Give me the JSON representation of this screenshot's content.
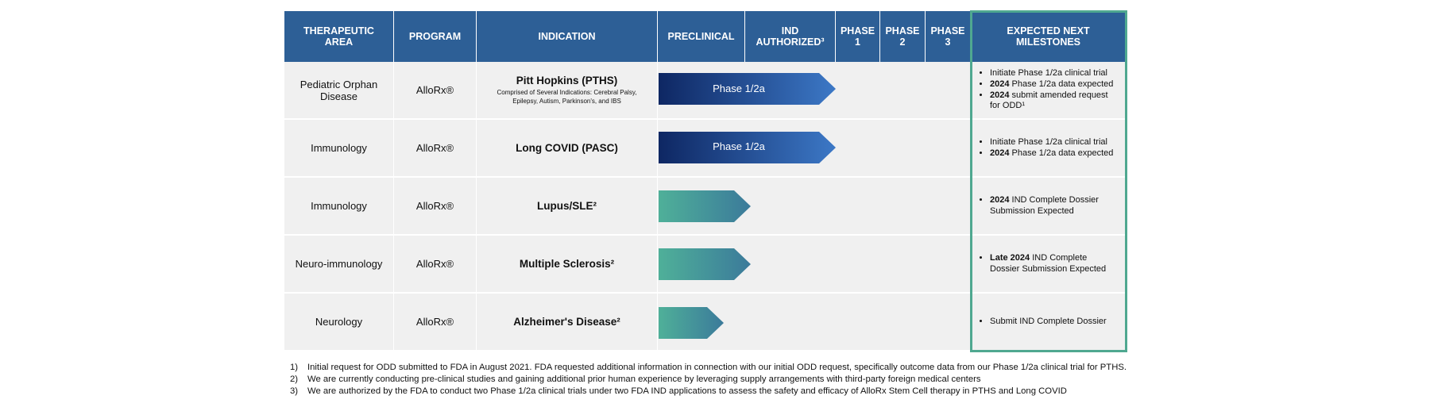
{
  "header": [
    "THERAPEUTIC AREA",
    "PROGRAM",
    "INDICATION",
    "PRECLINICAL",
    "IND AUTHORIZED³",
    "PHASE 1",
    "PHASE 2",
    "PHASE 3",
    "EXPECTED NEXT MILESTONES"
  ],
  "rows": [
    {
      "area": "Pediatric Orphan Disease",
      "program": "AlloRx®",
      "indication": "Pitt Hopkins (PTHS)",
      "note": "Comprised of Several Indications: Cerebral Palsy, Epilepsy, Autism, Parkinson's,  and IBS",
      "bar_label": "Phase 1/2a",
      "milestones": [
        {
          "text": "Initiate Phase 1/2a clinical trial"
        },
        {
          "bold": "2024",
          "text": " Phase 1/2a data expected"
        },
        {
          "bold": "2024",
          "text": " submit amended request for ODD¹"
        }
      ]
    },
    {
      "area": "Immunology",
      "program": "AlloRx®",
      "indication": "Long COVID (PASC)",
      "bar_label": "Phase 1/2a",
      "milestones": [
        {
          "text": "Initiate Phase 1/2a clinical trial"
        },
        {
          "bold": "2024",
          "text": " Phase 1/2a data expected"
        }
      ]
    },
    {
      "area": "Immunology",
      "program": "AlloRx®",
      "indication": "Lupus/SLE²",
      "milestones": [
        {
          "bold": "2024",
          "text": " IND Complete Dossier Submission Expected"
        }
      ]
    },
    {
      "area": "Neuro-immunology",
      "program": "AlloRx®",
      "indication": "Multiple Sclerosis²",
      "milestones": [
        {
          "bold": "Late 2024",
          "text": " IND Complete Dossier Submission Expected"
        }
      ]
    },
    {
      "area": "Neurology",
      "program": "AlloRx®",
      "indication": "Alzheimer's Disease²",
      "milestones": [
        {
          "text": "Submit IND Complete Dossier"
        }
      ]
    }
  ],
  "footnotes": [
    {
      "marker": "1)",
      "text": "Initial request for ODD submitted to FDA in August 2021. FDA requested additional information in connection with our initial ODD request, specifically outcome data from our Phase 1/2a clinical trial for PTHS."
    },
    {
      "marker": "2)",
      "text": "We are currently conducting pre-clinical studies and gaining additional prior human experience by leveraging supply arrangements with third-party foreign medical centers"
    },
    {
      "marker": "3)",
      "text": "We are authorized by the FDA to conduct two Phase 1/2a clinical trials under two FDA IND applications to assess the safety and efficacy of AlloRx Stem Cell therapy in PTHS and Long COVID"
    }
  ]
}
